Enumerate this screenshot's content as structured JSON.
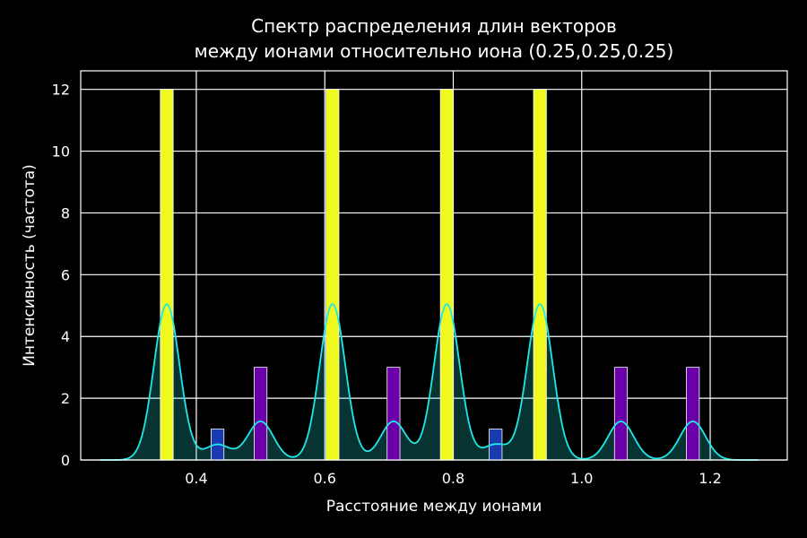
{
  "chart_data": {
    "type": "bar",
    "title_lines": [
      "Спектр распределения длин векторов",
      "между ионами относительно иона (0.25,0.25,0.25)"
    ],
    "xlabel": "Расстояние между ионами",
    "ylabel": "Интенсивность (частота)",
    "xlim": [
      0.22,
      1.32
    ],
    "ylim": [
      0,
      12.6
    ],
    "xticks": [
      0.4,
      0.6,
      0.8,
      1.0,
      1.2
    ],
    "xtick_labels": [
      "0.4",
      "0.6",
      "0.8",
      "1.0",
      "1.2"
    ],
    "yticks": [
      0,
      2,
      4,
      6,
      8,
      10,
      12
    ],
    "ytick_labels": [
      "0",
      "2",
      "4",
      "6",
      "8",
      "10",
      "12"
    ],
    "grid": true,
    "background": "#000000",
    "bar_width": 0.02,
    "bars": [
      {
        "x": 0.354,
        "value": 12,
        "color": "#f0f91e"
      },
      {
        "x": 0.433,
        "value": 1,
        "color": "#1a3ab0"
      },
      {
        "x": 0.5,
        "value": 3,
        "color": "#6a00a8"
      },
      {
        "x": 0.612,
        "value": 12,
        "color": "#f0f91e"
      },
      {
        "x": 0.707,
        "value": 3,
        "color": "#6a00a8"
      },
      {
        "x": 0.79,
        "value": 12,
        "color": "#f0f91e"
      },
      {
        "x": 0.866,
        "value": 1,
        "color": "#1a3ab0"
      },
      {
        "x": 0.935,
        "value": 12,
        "color": "#f0f91e"
      },
      {
        "x": 1.061,
        "value": 3,
        "color": "#6a00a8"
      },
      {
        "x": 1.173,
        "value": 3,
        "color": "#6a00a8"
      }
    ],
    "kde": {
      "color": "#1ee8e8",
      "fill_color": "#1ee8e8",
      "fill_opacity": 0.22,
      "x_range": [
        0.25,
        1.275
      ],
      "bandwidth": 0.02,
      "peak_values": [
        5.05,
        0.5,
        1.25,
        5.05,
        1.25,
        5.05,
        0.5,
        5.05,
        1.25,
        1.25
      ]
    }
  }
}
